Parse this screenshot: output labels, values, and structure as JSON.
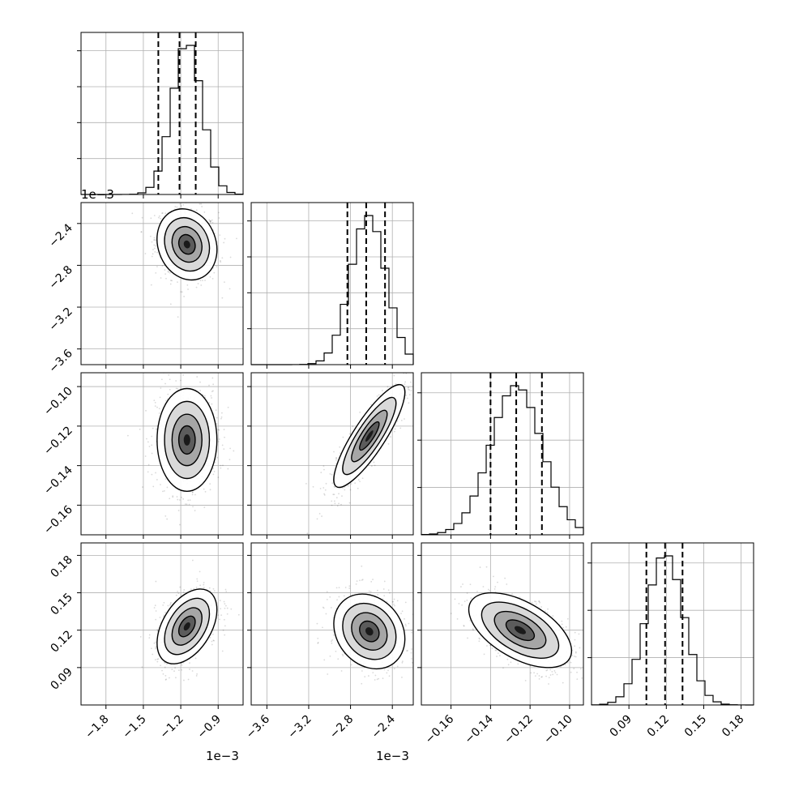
{
  "chart_data": {
    "type": "corner",
    "params": [
      {
        "ticks": [
          -1.8,
          -1.5,
          -1.2,
          -0.9
        ],
        "tick_labels": [
          "−1.8",
          "−1.5",
          "−1.2",
          "−0.9"
        ],
        "range": [
          -2.0,
          -0.7
        ],
        "offset_label": "1e−3",
        "quantiles": [
          -1.38,
          -1.21,
          -1.08
        ],
        "mean": -1.15,
        "sd": 0.12,
        "hist_ticks": [
          0,
          1,
          2,
          3
        ]
      },
      {
        "ticks": [
          -3.6,
          -3.2,
          -2.8,
          -2.4
        ],
        "tick_labels": [
          "−3.6",
          "−3.2",
          "−2.8",
          "−2.4"
        ],
        "range": [
          -3.75,
          -2.2
        ],
        "offset_label": "1e−3",
        "quantiles": [
          -2.83,
          -2.65,
          -2.47
        ],
        "mean": -2.63,
        "sd": 0.17,
        "hist_ticks": [
          0,
          1,
          2,
          3
        ]
      },
      {
        "ticks": [
          -0.16,
          -0.14,
          -0.12,
          -0.1
        ],
        "tick_labels": [
          "−0.16",
          "−0.14",
          "−0.12",
          "−0.10"
        ],
        "range": [
          -0.175,
          -0.093
        ],
        "offset_label": "",
        "quantiles": [
          -0.14,
          -0.127,
          -0.114
        ],
        "mean": -0.127,
        "sd": 0.013,
        "hist_ticks": [
          0,
          1,
          2
        ]
      },
      {
        "ticks": [
          0.09,
          0.12,
          0.15,
          0.18
        ],
        "tick_labels": [
          "0.09",
          "0.12",
          "0.15",
          "0.18"
        ],
        "range": [
          0.06,
          0.19
        ],
        "offset_label": "",
        "quantiles": [
          0.104,
          0.119,
          0.133
        ],
        "mean": 0.119,
        "sd": 0.015,
        "hist_ticks": [
          0,
          1,
          2
        ]
      }
    ],
    "pairs": {
      "1-0": {
        "center": [
          -1.15,
          -2.6
        ],
        "rho": -0.15
      },
      "2-0": {
        "center": [
          -1.15,
          -0.127
        ],
        "rho": 0.0
      },
      "2-1": {
        "center": [
          -2.62,
          -0.125
        ],
        "rho": 0.85
      },
      "3-0": {
        "center": [
          -1.15,
          0.123
        ],
        "rho": 0.45
      },
      "3-1": {
        "center": [
          -2.62,
          0.119
        ],
        "rho": -0.2
      },
      "3-2": {
        "center": [
          -0.125,
          0.12
        ],
        "rho": -0.55
      }
    },
    "grid": true,
    "style": {
      "line": "#000000",
      "grid": "#b0b0b0",
      "scatter": "#000000"
    }
  }
}
